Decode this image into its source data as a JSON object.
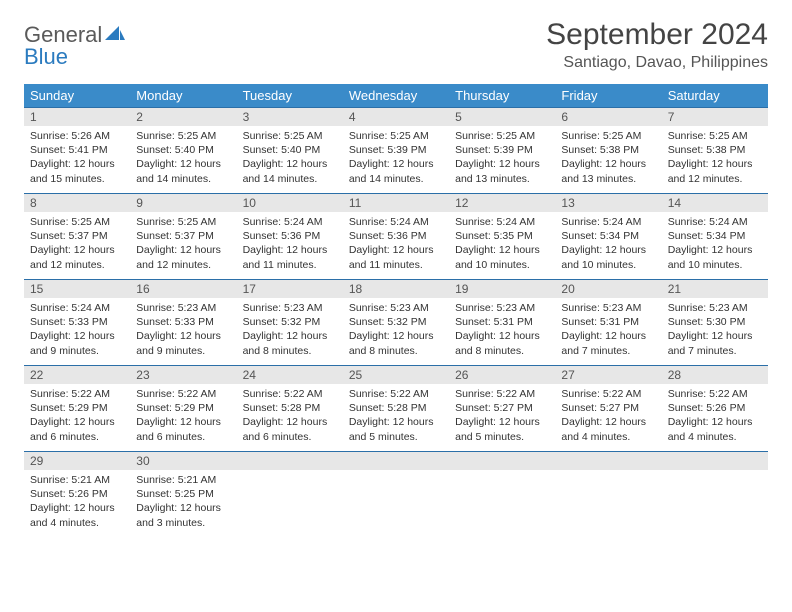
{
  "logo": {
    "text1": "General",
    "text2": "Blue"
  },
  "title": "September 2024",
  "location": "Santiago, Davao, Philippines",
  "colors": {
    "header_bg": "#3a8bc9",
    "header_text": "#ffffff",
    "daynum_bg": "#e7e7e7",
    "row_border": "#2b6fa8",
    "logo_gray": "#5a5a5a",
    "logo_blue": "#2b7bbf"
  },
  "weekdays": [
    "Sunday",
    "Monday",
    "Tuesday",
    "Wednesday",
    "Thursday",
    "Friday",
    "Saturday"
  ],
  "days": [
    {
      "n": "1",
      "sr": "5:26 AM",
      "ss": "5:41 PM",
      "dl": "12 hours and 15 minutes."
    },
    {
      "n": "2",
      "sr": "5:25 AM",
      "ss": "5:40 PM",
      "dl": "12 hours and 14 minutes."
    },
    {
      "n": "3",
      "sr": "5:25 AM",
      "ss": "5:40 PM",
      "dl": "12 hours and 14 minutes."
    },
    {
      "n": "4",
      "sr": "5:25 AM",
      "ss": "5:39 PM",
      "dl": "12 hours and 14 minutes."
    },
    {
      "n": "5",
      "sr": "5:25 AM",
      "ss": "5:39 PM",
      "dl": "12 hours and 13 minutes."
    },
    {
      "n": "6",
      "sr": "5:25 AM",
      "ss": "5:38 PM",
      "dl": "12 hours and 13 minutes."
    },
    {
      "n": "7",
      "sr": "5:25 AM",
      "ss": "5:38 PM",
      "dl": "12 hours and 12 minutes."
    },
    {
      "n": "8",
      "sr": "5:25 AM",
      "ss": "5:37 PM",
      "dl": "12 hours and 12 minutes."
    },
    {
      "n": "9",
      "sr": "5:25 AM",
      "ss": "5:37 PM",
      "dl": "12 hours and 12 minutes."
    },
    {
      "n": "10",
      "sr": "5:24 AM",
      "ss": "5:36 PM",
      "dl": "12 hours and 11 minutes."
    },
    {
      "n": "11",
      "sr": "5:24 AM",
      "ss": "5:36 PM",
      "dl": "12 hours and 11 minutes."
    },
    {
      "n": "12",
      "sr": "5:24 AM",
      "ss": "5:35 PM",
      "dl": "12 hours and 10 minutes."
    },
    {
      "n": "13",
      "sr": "5:24 AM",
      "ss": "5:34 PM",
      "dl": "12 hours and 10 minutes."
    },
    {
      "n": "14",
      "sr": "5:24 AM",
      "ss": "5:34 PM",
      "dl": "12 hours and 10 minutes."
    },
    {
      "n": "15",
      "sr": "5:24 AM",
      "ss": "5:33 PM",
      "dl": "12 hours and 9 minutes."
    },
    {
      "n": "16",
      "sr": "5:23 AM",
      "ss": "5:33 PM",
      "dl": "12 hours and 9 minutes."
    },
    {
      "n": "17",
      "sr": "5:23 AM",
      "ss": "5:32 PM",
      "dl": "12 hours and 8 minutes."
    },
    {
      "n": "18",
      "sr": "5:23 AM",
      "ss": "5:32 PM",
      "dl": "12 hours and 8 minutes."
    },
    {
      "n": "19",
      "sr": "5:23 AM",
      "ss": "5:31 PM",
      "dl": "12 hours and 8 minutes."
    },
    {
      "n": "20",
      "sr": "5:23 AM",
      "ss": "5:31 PM",
      "dl": "12 hours and 7 minutes."
    },
    {
      "n": "21",
      "sr": "5:23 AM",
      "ss": "5:30 PM",
      "dl": "12 hours and 7 minutes."
    },
    {
      "n": "22",
      "sr": "5:22 AM",
      "ss": "5:29 PM",
      "dl": "12 hours and 6 minutes."
    },
    {
      "n": "23",
      "sr": "5:22 AM",
      "ss": "5:29 PM",
      "dl": "12 hours and 6 minutes."
    },
    {
      "n": "24",
      "sr": "5:22 AM",
      "ss": "5:28 PM",
      "dl": "12 hours and 6 minutes."
    },
    {
      "n": "25",
      "sr": "5:22 AM",
      "ss": "5:28 PM",
      "dl": "12 hours and 5 minutes."
    },
    {
      "n": "26",
      "sr": "5:22 AM",
      "ss": "5:27 PM",
      "dl": "12 hours and 5 minutes."
    },
    {
      "n": "27",
      "sr": "5:22 AM",
      "ss": "5:27 PM",
      "dl": "12 hours and 4 minutes."
    },
    {
      "n": "28",
      "sr": "5:22 AM",
      "ss": "5:26 PM",
      "dl": "12 hours and 4 minutes."
    },
    {
      "n": "29",
      "sr": "5:21 AM",
      "ss": "5:26 PM",
      "dl": "12 hours and 4 minutes."
    },
    {
      "n": "30",
      "sr": "5:21 AM",
      "ss": "5:25 PM",
      "dl": "12 hours and 3 minutes."
    }
  ],
  "labels": {
    "sunrise": "Sunrise:",
    "sunset": "Sunset:",
    "daylight": "Daylight:"
  }
}
